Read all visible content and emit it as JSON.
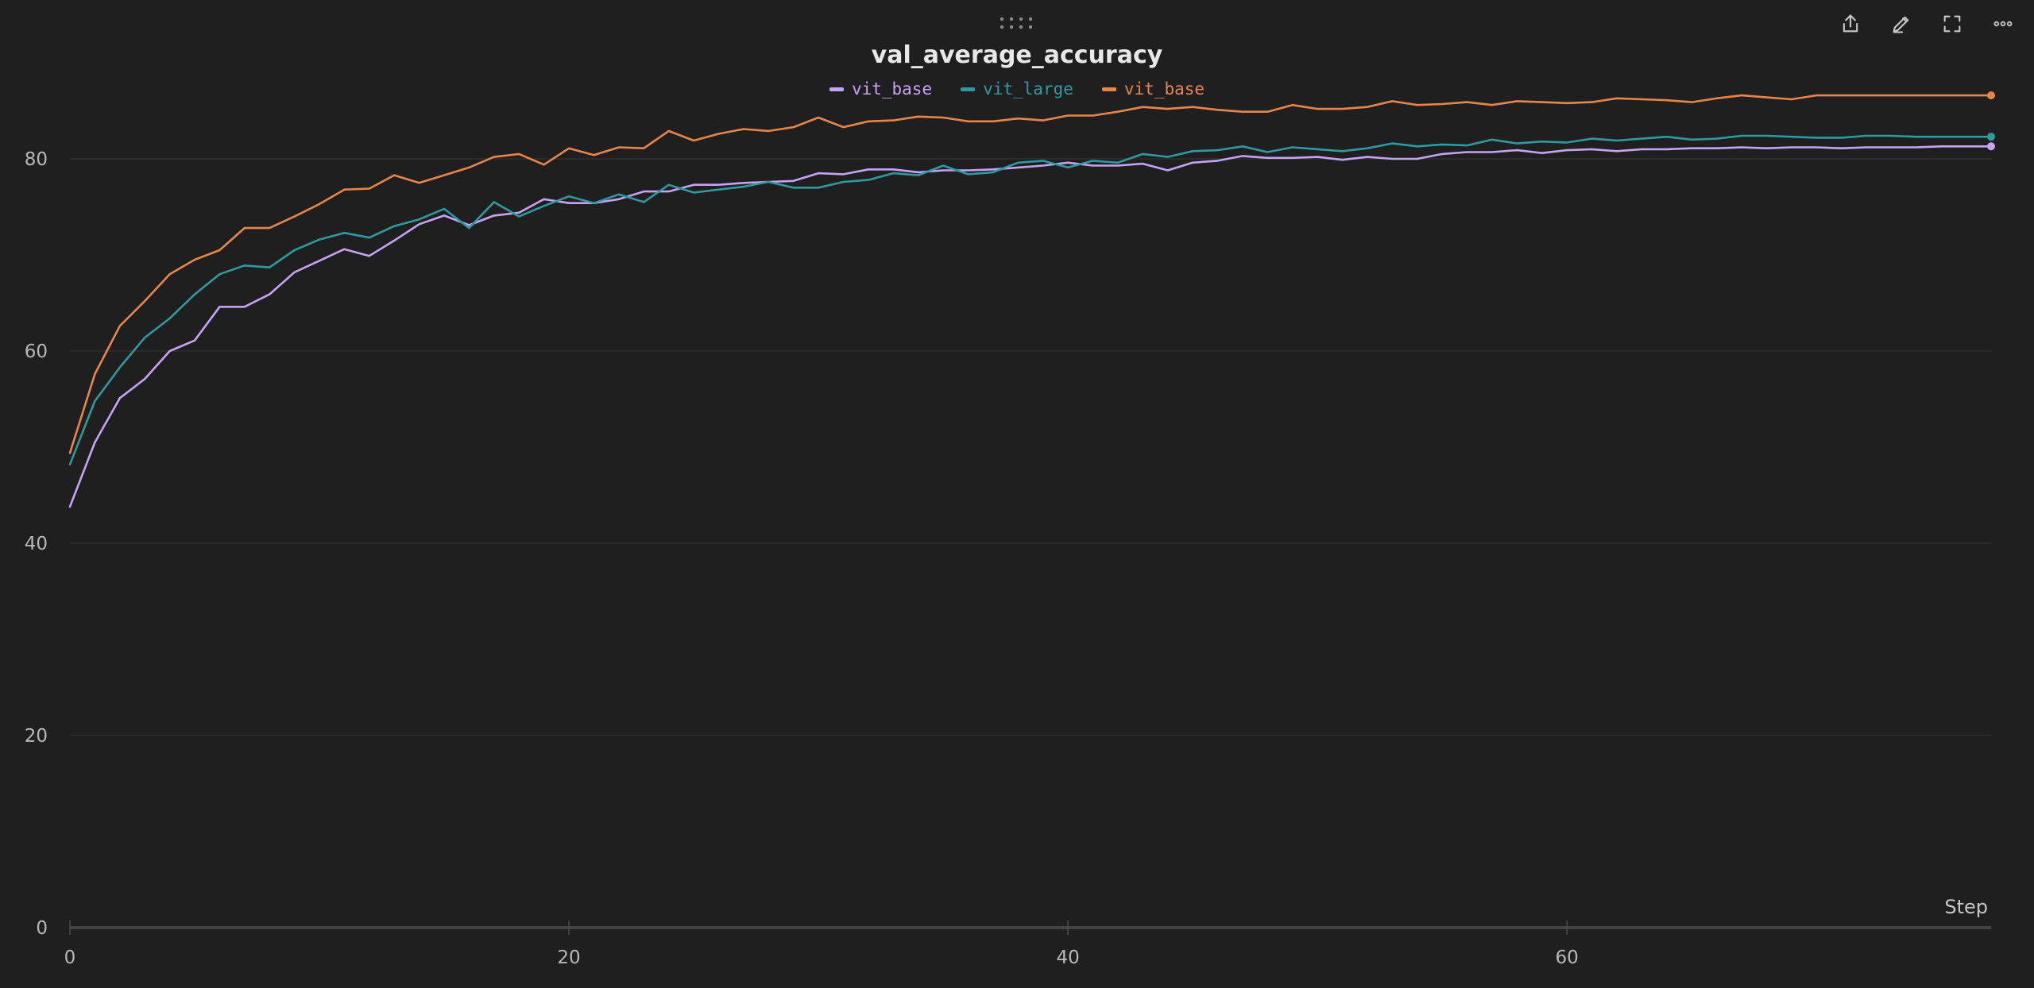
{
  "toolbar": {
    "icons": [
      "share-icon",
      "edit-icon",
      "fullscreen-icon",
      "more-icon"
    ]
  },
  "chart_data": {
    "type": "line",
    "title": "val_average_accuracy",
    "xlabel": "Step",
    "ylabel": "",
    "xlim": [
      0,
      77
    ],
    "ylim": [
      0,
      90
    ],
    "xticks": [
      0,
      20,
      40,
      60
    ],
    "yticks": [
      0,
      20,
      40,
      60,
      80
    ],
    "grid": true,
    "legend_position": "top-center",
    "series": [
      {
        "name": "vit_base",
        "color": "#c5a3f5",
        "values": [
          43.8,
          50.5,
          55.1,
          57.1,
          60.0,
          61.1,
          64.6,
          64.6,
          65.9,
          68.2,
          69.4,
          70.6,
          69.9,
          71.5,
          73.2,
          74.1,
          73.1,
          74.1,
          74.4,
          75.8,
          75.4,
          75.4,
          75.8,
          76.6,
          76.6,
          77.3,
          77.3,
          77.5,
          77.6,
          77.7,
          78.5,
          78.4,
          78.9,
          78.9,
          78.6,
          78.8,
          78.8,
          78.9,
          79.1,
          79.3,
          79.6,
          79.3,
          79.3,
          79.5,
          78.8,
          79.6,
          79.8,
          80.3,
          80.1,
          80.1,
          80.2,
          79.9,
          80.2,
          80.0,
          80.0,
          80.5,
          80.7,
          80.7,
          80.9,
          80.6,
          80.9,
          81.0,
          80.8,
          81.0,
          81.0,
          81.1,
          81.1,
          81.2,
          81.1,
          81.2,
          81.2,
          81.1,
          81.2,
          81.2,
          81.2,
          81.3,
          81.3,
          81.3
        ]
      },
      {
        "name": "vit_large",
        "color": "#2e9aa0",
        "values": [
          48.2,
          54.8,
          58.3,
          61.4,
          63.4,
          65.9,
          68.0,
          68.9,
          68.7,
          70.5,
          71.6,
          72.3,
          71.8,
          73.0,
          73.7,
          74.8,
          72.8,
          75.5,
          74.0,
          75.1,
          76.1,
          75.4,
          76.3,
          75.5,
          77.3,
          76.5,
          76.8,
          77.1,
          77.6,
          77.0,
          77.0,
          77.6,
          77.8,
          78.5,
          78.3,
          79.3,
          78.4,
          78.6,
          79.6,
          79.8,
          79.1,
          79.8,
          79.6,
          80.5,
          80.2,
          80.8,
          80.9,
          81.3,
          80.7,
          81.2,
          81.0,
          80.8,
          81.1,
          81.6,
          81.3,
          81.5,
          81.4,
          82.0,
          81.6,
          81.8,
          81.7,
          82.1,
          81.9,
          82.1,
          82.3,
          82.0,
          82.1,
          82.4,
          82.4,
          82.3,
          82.2,
          82.2,
          82.4,
          82.4,
          82.3,
          82.3,
          82.3,
          82.3
        ]
      },
      {
        "name": "vit_base",
        "color": "#e8864a",
        "values": [
          49.4,
          57.6,
          62.6,
          65.2,
          68.0,
          69.5,
          70.5,
          72.8,
          72.8,
          74.0,
          75.3,
          76.8,
          76.9,
          78.3,
          77.5,
          78.3,
          79.1,
          80.2,
          80.5,
          79.4,
          81.1,
          80.4,
          81.2,
          81.1,
          82.9,
          81.9,
          82.6,
          83.1,
          82.9,
          83.3,
          84.3,
          83.3,
          83.9,
          84.0,
          84.4,
          84.3,
          83.9,
          83.9,
          84.2,
          84.0,
          84.5,
          84.5,
          84.9,
          85.4,
          85.2,
          85.4,
          85.1,
          84.9,
          84.9,
          85.6,
          85.2,
          85.2,
          85.4,
          86.0,
          85.6,
          85.7,
          85.9,
          85.6,
          86.0,
          85.9,
          85.8,
          85.9,
          86.3,
          86.2,
          86.1,
          85.9,
          86.3,
          86.6,
          86.4,
          86.2,
          86.6,
          86.6,
          86.6,
          86.6,
          86.6,
          86.6,
          86.6,
          86.6
        ]
      }
    ]
  }
}
